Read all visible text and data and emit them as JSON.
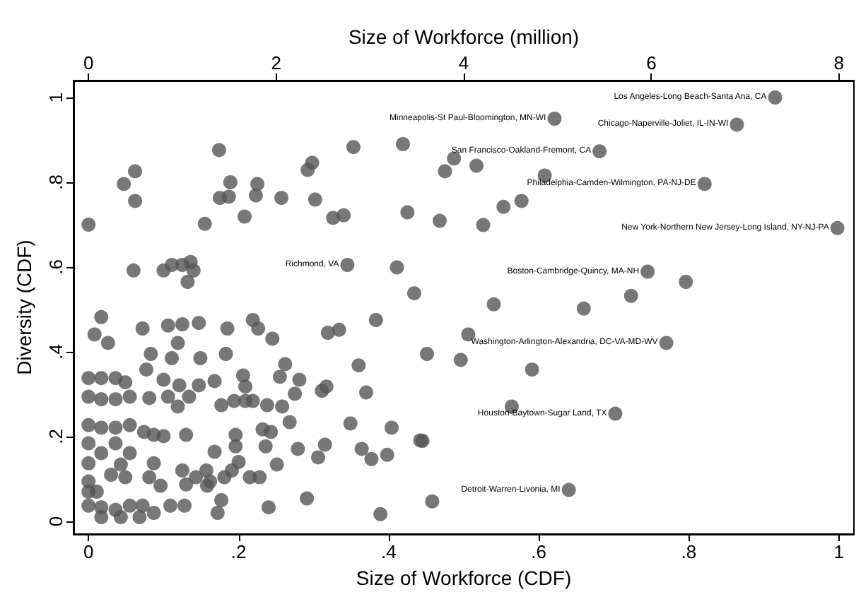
{
  "chart_data": {
    "type": "scatter",
    "xlabel": "Size of Workforce (CDF)",
    "ylabel": "Diversity (CDF)",
    "x2label": "Size of Workforce (million)",
    "xlim": [
      -0.02,
      1.02
    ],
    "ylim": [
      -0.03,
      1.04
    ],
    "x2lim": [
      -0.16,
      8.16
    ],
    "xticks": [
      0,
      {
        "value": 0.2,
        "label": ".2"
      },
      {
        "value": 0.4,
        "label": ".4"
      },
      {
        "value": 0.6,
        "label": ".6"
      },
      {
        "value": 0.8,
        "label": ".8"
      },
      1
    ],
    "yticks": [
      0,
      {
        "value": 0.2,
        "label": ".2"
      },
      {
        "value": 0.4,
        "label": ".4"
      },
      {
        "value": 0.6,
        "label": ".6"
      },
      {
        "value": 0.8,
        "label": ".8"
      },
      1
    ],
    "x2ticks": [
      0,
      2,
      4,
      6,
      8
    ],
    "grid": false,
    "marker": "circle",
    "series": [
      {
        "color": "#555555",
        "x": [
          0.915,
          0.864,
          0.621,
          0.681,
          0.821,
          0.998,
          0.745,
          0.345,
          0.77,
          0.702,
          0.64,
          0,
          0.047,
          0.062,
          0.062,
          0.06,
          0.1,
          0.111,
          0.125,
          0.136,
          0.14,
          0.132,
          0.155,
          0.174,
          0.189,
          0.175,
          0.187,
          0.208,
          0.225,
          0.223,
          0.257,
          0.292,
          0.298,
          0.302,
          0.326,
          0.34,
          0.353,
          0.411,
          0.434,
          0.425,
          0.468,
          0.475,
          0.487,
          0.419,
          0.517,
          0.608,
          0.553,
          0.577,
          0.526,
          0.796,
          0.723,
          0.54,
          0.66,
          0.506,
          0.451,
          0.496,
          0.591,
          0.564,
          0.445,
          0.458,
          0.017,
          0.008,
          0.026,
          0.072,
          0.106,
          0.125,
          0.147,
          0.185,
          0.219,
          0.226,
          0.245,
          0.119,
          0.083,
          0.111,
          0.149,
          0.183,
          0.077,
          0.1,
          0.121,
          0.147,
          0.168,
          0.206,
          0.209,
          0.262,
          0.255,
          0.281,
          0.275,
          0.317,
          0.311,
          0.36,
          0.37,
          0.319,
          0.334,
          0.383,
          0,
          0.017,
          0.036,
          0.049,
          0,
          0.017,
          0.036,
          0.055,
          0.081,
          0.106,
          0.119,
          0.134,
          0.177,
          0.194,
          0.209,
          0.219,
          0.238,
          0.258,
          0.268,
          0.232,
          0.243,
          0.236,
          0.196,
          0.196,
          0.13,
          0.168,
          0.2,
          0.251,
          0.279,
          0.315,
          0.306,
          0.349,
          0.364,
          0.377,
          0.398,
          0.404,
          0.442,
          0,
          0.017,
          0.036,
          0.055,
          0.074,
          0.087,
          0.1,
          0,
          0,
          0.017,
          0.036,
          0.055,
          0.03,
          0.049,
          0.043,
          0.087,
          0.081,
          0.096,
          0.125,
          0.143,
          0.157,
          0.162,
          0.181,
          0.191,
          0.215,
          0.228,
          0.13,
          0.158,
          0,
          0.011,
          0,
          0.017,
          0.036,
          0.055,
          0.072,
          0.087,
          0.017,
          0.043,
          0.068,
          0.109,
          0.128,
          0.177,
          0.172,
          0.24,
          0.291,
          0.389,
          0
        ],
        "values": [
          1.0,
          0.936,
          0.95,
          0.873,
          0.796,
          0.692,
          0.589,
          0.605,
          0.421,
          0.254,
          0.074,
          0.7,
          0.796,
          0.826,
          0.756,
          0.592,
          0.592,
          0.605,
          0.605,
          0.612,
          0.592,
          0.565,
          0.702,
          0.876,
          0.8,
          0.763,
          0.766,
          0.719,
          0.796,
          0.769,
          0.763,
          0.829,
          0.846,
          0.759,
          0.716,
          0.722,
          0.883,
          0.599,
          0.538,
          0.729,
          0.709,
          0.826,
          0.856,
          0.89,
          0.839,
          0.816,
          0.742,
          0.756,
          0.699,
          0.565,
          0.532,
          0.512,
          0.502,
          0.441,
          0.395,
          0.381,
          0.358,
          0.271,
          0.19,
          0.047,
          0.482,
          0.441,
          0.421,
          0.455,
          0.462,
          0.465,
          0.468,
          0.455,
          0.475,
          0.455,
          0.431,
          0.421,
          0.395,
          0.385,
          0.385,
          0.395,
          0.358,
          0.334,
          0.321,
          0.321,
          0.331,
          0.344,
          0.318,
          0.371,
          0.341,
          0.334,
          0.301,
          0.318,
          0.308,
          0.368,
          0.304,
          0.445,
          0.452,
          0.475,
          0.338,
          0.338,
          0.338,
          0.328,
          0.294,
          0.288,
          0.288,
          0.294,
          0.291,
          0.294,
          0.271,
          0.294,
          0.274,
          0.284,
          0.284,
          0.284,
          0.274,
          0.271,
          0.234,
          0.217,
          0.211,
          0.177,
          0.204,
          0.177,
          0.204,
          0.164,
          0.14,
          0.134,
          0.171,
          0.181,
          0.151,
          0.231,
          0.171,
          0.147,
          0.157,
          0.221,
          0.191,
          0.227,
          0.221,
          0.221,
          0.227,
          0.211,
          0.204,
          0.201,
          0.184,
          0.137,
          0.161,
          0.184,
          0.161,
          0.11,
          0.104,
          0.134,
          0.137,
          0.104,
          0.084,
          0.12,
          0.104,
          0.12,
          0.094,
          0.104,
          0.12,
          0.104,
          0.104,
          0.087,
          0.084,
          0.094,
          0.07,
          0.037,
          0.033,
          0.027,
          0.037,
          0.037,
          0.02,
          0.01,
          0.01,
          0.01,
          0.037,
          0.037,
          0.05,
          0.02,
          0.033,
          0.054,
          0.017,
          0.07
        ]
      }
    ],
    "annotations": [
      {
        "text": "Los Angeles-Long Beach-Santa Ana, CA",
        "x": 0.915,
        "y": 1.0
      },
      {
        "text": "Minneapolis-St Paul-Bloomington, MN-WI",
        "x": 0.621,
        "y": 0.95
      },
      {
        "text": "Chicago-Naperville-Joliet, IL-IN-WI",
        "x": 0.864,
        "y": 0.936
      },
      {
        "text": "San Francisco-Oakland-Fremont, CA",
        "x": 0.681,
        "y": 0.873
      },
      {
        "text": "Philadelphia-Camden-Wilmington, PA-NJ-DE",
        "x": 0.821,
        "y": 0.796
      },
      {
        "text": "New York-Northern New Jersey-Long Island, NY-NJ-PA",
        "x": 0.998,
        "y": 0.692
      },
      {
        "text": "Richmond, VA",
        "x": 0.345,
        "y": 0.605
      },
      {
        "text": "Boston-Cambridge-Quincy, MA-NH",
        "x": 0.745,
        "y": 0.589
      },
      {
        "text": "Washington-Arlington-Alexandria, DC-VA-MD-WV",
        "x": 0.77,
        "y": 0.421
      },
      {
        "text": "Houston-Baytown-Sugar Land, TX",
        "x": 0.702,
        "y": 0.254
      },
      {
        "text": "Detroit-Warren-Livonia, MI",
        "x": 0.64,
        "y": 0.074
      }
    ]
  }
}
